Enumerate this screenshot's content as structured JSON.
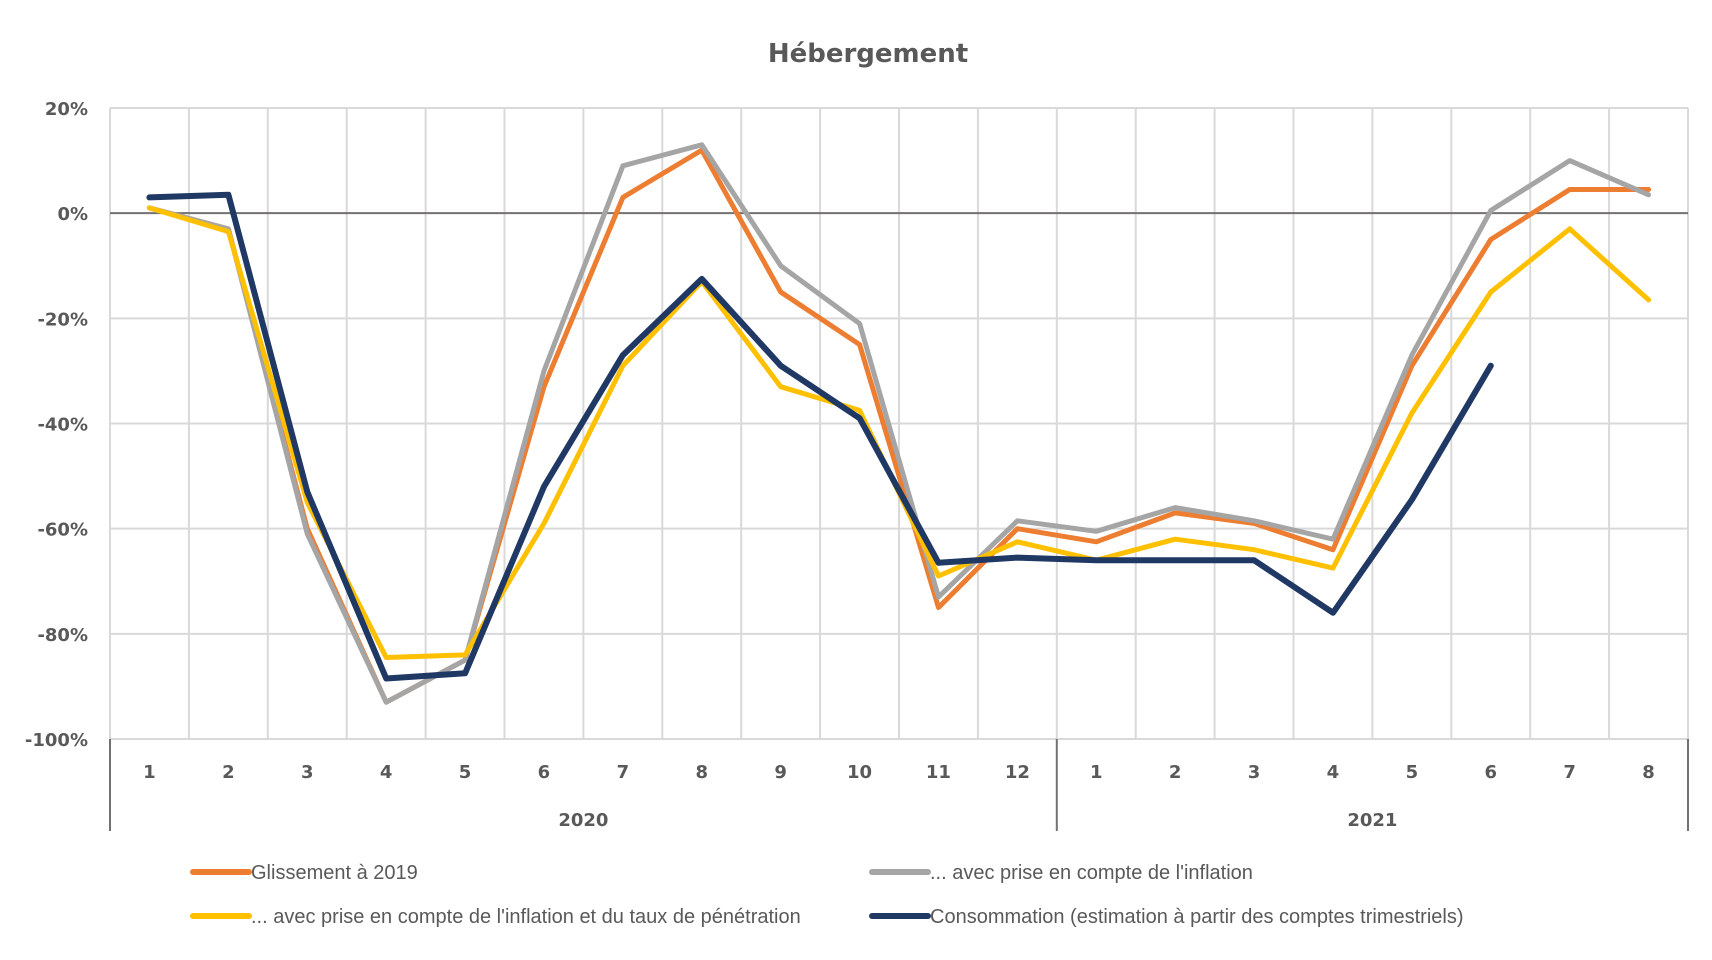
{
  "chart_data": {
    "type": "line",
    "title": "Hébergement",
    "xlabel": "",
    "ylabel": "",
    "ylim": [
      -100,
      20
    ],
    "yticks": [
      20,
      0,
      -20,
      -40,
      -60,
      -80,
      -100
    ],
    "ytick_labels": [
      "20%",
      "0%",
      "-20%",
      "-40%",
      "-60%",
      "-80%",
      "-100%"
    ],
    "grid": true,
    "categories": [
      "1",
      "2",
      "3",
      "4",
      "5",
      "6",
      "7",
      "8",
      "9",
      "10",
      "11",
      "12",
      "1",
      "2",
      "3",
      "4",
      "5",
      "6",
      "7",
      "8"
    ],
    "groups": [
      {
        "label": "2020",
        "count": 12
      },
      {
        "label": "2021",
        "count": 8
      }
    ],
    "legend_position": "bottom",
    "series": [
      {
        "name": "Glissement à 2019",
        "color": "#ED7D31",
        "values": [
          1,
          -3,
          -60,
          -93,
          -85,
          -33,
          3,
          12,
          -15,
          -25,
          -75,
          -60,
          -62.5,
          -57,
          -59,
          -64,
          -29,
          -5,
          4.5,
          4.5
        ]
      },
      {
        "name": "... avec prise en compte de l'inflation",
        "color": "#A5A5A5",
        "values": [
          1,
          -3,
          -61,
          -93,
          -85,
          -30,
          9,
          13,
          -10,
          -21,
          -73,
          -58.5,
          -60.5,
          -56,
          -58.5,
          -62,
          -27,
          0.5,
          10,
          3.5
        ]
      },
      {
        "name": "... avec prise en compte de l'inflation et du taux de pénétration",
        "color": "#FFC000",
        "values": [
          1,
          -3.5,
          -55,
          -84.5,
          -84,
          -59,
          -29,
          -13,
          -33,
          -37.5,
          -69,
          -62.5,
          -66,
          -62,
          -64,
          -67.5,
          -38,
          -15,
          -3,
          -16.5
        ]
      },
      {
        "name": "Consommation (estimation à partir des comptes trimestriels)",
        "color": "#203864",
        "values": [
          3,
          3.5,
          -53,
          -88.5,
          -87.5,
          -52,
          -27,
          -12.5,
          -29,
          -39,
          -66.5,
          -65.5,
          -66,
          -66,
          -66,
          -76,
          -54.5,
          -29,
          null,
          null
        ]
      }
    ]
  }
}
